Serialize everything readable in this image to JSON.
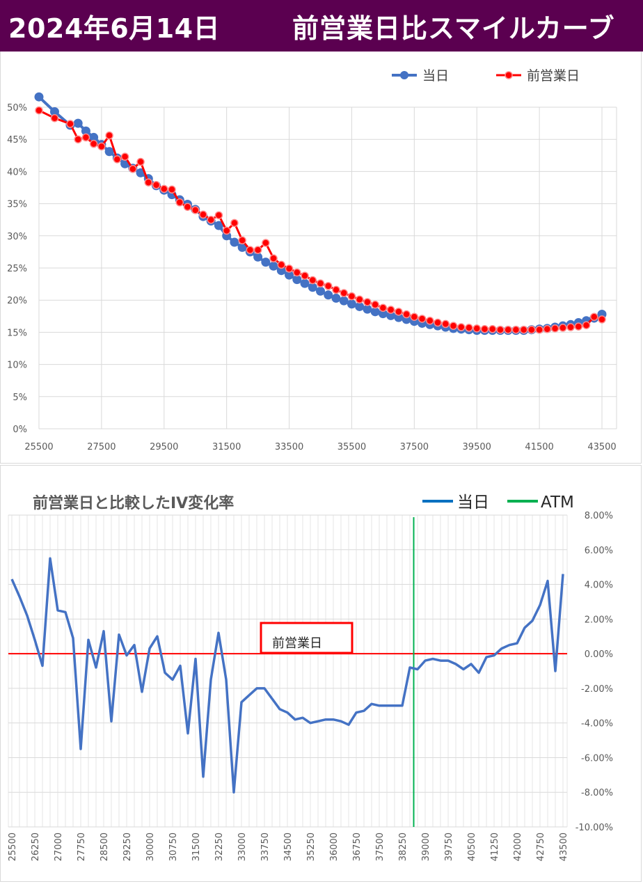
{
  "header": {
    "date": "2024年6月14日",
    "title": "前営業日比スマイルカーブ"
  },
  "chart_data": [
    {
      "type": "line",
      "title": "",
      "xlabel": "",
      "ylabel": "",
      "x_ticks": [
        "25500",
        "27500",
        "29500",
        "31500",
        "33500",
        "35500",
        "37500",
        "39500",
        "41500",
        "43500"
      ],
      "y_ticks": [
        "0%",
        "5%",
        "10%",
        "15%",
        "20%",
        "25%",
        "30%",
        "35%",
        "40%",
        "45%",
        "50%"
      ],
      "xlim": [
        25500,
        43500
      ],
      "ylim": [
        0,
        50
      ],
      "grid": true,
      "legend_position": "top-right",
      "x": [
        25500,
        26000,
        26500,
        26750,
        27000,
        27250,
        27500,
        27750,
        28000,
        28250,
        28500,
        28750,
        29000,
        29250,
        29500,
        29750,
        30000,
        30250,
        30500,
        30750,
        31000,
        31250,
        31500,
        31750,
        32000,
        32250,
        32500,
        32750,
        33000,
        33250,
        33500,
        33750,
        34000,
        34250,
        34500,
        34750,
        35000,
        35250,
        35500,
        35750,
        36000,
        36250,
        36500,
        36750,
        37000,
        37250,
        37500,
        37750,
        38000,
        38250,
        38500,
        38750,
        39000,
        39250,
        39500,
        39750,
        40000,
        40250,
        40500,
        40750,
        41000,
        41250,
        41500,
        41750,
        42000,
        42250,
        42500,
        42750,
        43000,
        43250,
        43500
      ],
      "series": [
        {
          "name": "当日",
          "color": "#4472c4",
          "values": [
            51.6,
            49.3,
            47.2,
            47.5,
            46.3,
            45.3,
            44.2,
            43.1,
            42.1,
            41.2,
            40.5,
            39.8,
            38.9,
            37.8,
            37.1,
            36.4,
            35.6,
            34.9,
            34.1,
            33.0,
            32.3,
            31.6,
            30.0,
            29.0,
            28.2,
            27.5,
            26.7,
            25.9,
            25.3,
            24.6,
            23.9,
            23.2,
            22.6,
            22.0,
            21.4,
            20.8,
            20.3,
            19.9,
            19.4,
            19.0,
            18.6,
            18.2,
            17.9,
            17.6,
            17.3,
            17.0,
            16.7,
            16.4,
            16.2,
            16.0,
            15.8,
            15.6,
            15.5,
            15.4,
            15.3,
            15.3,
            15.3,
            15.3,
            15.3,
            15.3,
            15.3,
            15.4,
            15.5,
            15.6,
            15.8,
            16.0,
            16.2,
            16.5,
            16.8,
            17.2,
            17.8
          ]
        },
        {
          "name": "前営業日",
          "color": "#ff0000",
          "values": [
            49.5,
            48.3,
            47.4,
            45.0,
            45.3,
            44.3,
            43.9,
            45.6,
            41.9,
            42.3,
            40.4,
            41.5,
            38.3,
            37.9,
            37.3,
            37.2,
            35.2,
            34.5,
            34.0,
            33.3,
            32.5,
            33.2,
            30.8,
            32.0,
            29.3,
            27.8,
            27.8,
            28.9,
            26.5,
            25.5,
            24.9,
            24.3,
            23.8,
            23.1,
            22.6,
            22.2,
            21.6,
            21.1,
            20.6,
            20.1,
            19.7,
            19.3,
            18.8,
            18.5,
            18.2,
            17.8,
            17.4,
            17.1,
            16.8,
            16.5,
            16.3,
            16.0,
            15.8,
            15.7,
            15.6,
            15.5,
            15.5,
            15.4,
            15.4,
            15.4,
            15.4,
            15.4,
            15.4,
            15.5,
            15.6,
            15.7,
            15.8,
            15.9,
            16.1,
            17.4,
            17.0
          ]
        }
      ]
    },
    {
      "type": "line",
      "title": "前営業日と比較したIV変化率",
      "xlabel": "",
      "ylabel": "",
      "x_ticks": [
        "25500",
        "26250",
        "27000",
        "27750",
        "28500",
        "29250",
        "30000",
        "30750",
        "31500",
        "32250",
        "33000",
        "33750",
        "34500",
        "35250",
        "36000",
        "36750",
        "37500",
        "38250",
        "39000",
        "39750",
        "40500",
        "41250",
        "42000",
        "42750",
        "43500"
      ],
      "y_ticks": [
        "8.00%",
        "6.00%",
        "4.00%",
        "2.00%",
        "0.00%",
        "-2.00%",
        "-4.00%",
        "-6.00%",
        "-8.00%",
        "-10.00%"
      ],
      "xlim": [
        25500,
        43500
      ],
      "ylim": [
        -10,
        8
      ],
      "grid": true,
      "legend_position": "top-right",
      "atm_strike": 38625,
      "annotation": "前営業日",
      "x": [
        25500,
        25750,
        26000,
        26250,
        26500,
        26750,
        27000,
        27250,
        27500,
        27750,
        28000,
        28250,
        28500,
        28750,
        29000,
        29250,
        29500,
        29750,
        30000,
        30250,
        30500,
        30750,
        31000,
        31250,
        31500,
        31750,
        32000,
        32250,
        32500,
        32750,
        33000,
        33250,
        33500,
        33750,
        34000,
        34250,
        34500,
        34750,
        35000,
        35250,
        35500,
        35750,
        36000,
        36250,
        36500,
        36750,
        37000,
        37250,
        37500,
        37750,
        38000,
        38250,
        38500,
        38750,
        39000,
        39250,
        39500,
        39750,
        40000,
        40250,
        40500,
        40750,
        41000,
        41250,
        41500,
        41750,
        42000,
        42250,
        42500,
        42750,
        43000,
        43250,
        43500
      ],
      "series": [
        {
          "name": "当日",
          "color": "#4472c4",
          "values": [
            4.3,
            3.3,
            2.2,
            0.8,
            -0.7,
            5.5,
            2.5,
            2.4,
            0.9,
            -5.5,
            0.8,
            -0.8,
            1.3,
            -3.9,
            1.1,
            -0.1,
            0.5,
            -2.2,
            0.3,
            1.0,
            -1.1,
            -1.5,
            -0.7,
            -4.6,
            -0.3,
            -7.1,
            -1.5,
            1.2,
            -1.5,
            -8.0,
            -2.8,
            -2.4,
            -2.0,
            -2.0,
            -2.6,
            -3.2,
            -3.4,
            -3.8,
            -3.7,
            -4.0,
            -3.9,
            -3.8,
            -3.8,
            -3.9,
            -4.1,
            -3.4,
            -3.3,
            -2.9,
            -3.0,
            -3.0,
            -3.0,
            -3.0,
            -0.8,
            -0.9,
            -0.4,
            -0.3,
            -0.4,
            -0.4,
            -0.6,
            -0.9,
            -0.6,
            -1.1,
            -0.2,
            -0.1,
            0.3,
            0.5,
            0.6,
            1.5,
            1.9,
            2.8,
            4.2,
            -1.0,
            4.6
          ]
        },
        {
          "name": "ATM",
          "color": "#00b050"
        }
      ],
      "baseline": {
        "name": "前営業日",
        "value": 0,
        "color": "#ff0000"
      }
    }
  ]
}
